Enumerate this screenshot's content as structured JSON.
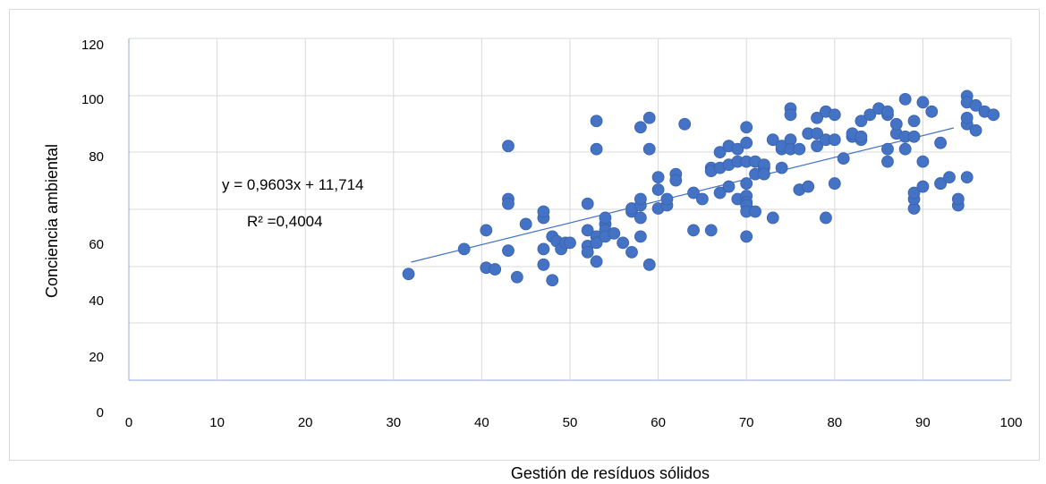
{
  "chart_data": {
    "type": "scatter",
    "xlabel": "Gestión de resíduos sólidos",
    "ylabel": "Conciencia ambiental",
    "xlim": [
      0,
      100
    ],
    "ylim": [
      0,
      120
    ],
    "x_ticks": [
      "0",
      "10",
      "20",
      "30",
      "40",
      "50",
      "60",
      "70",
      "80",
      "90",
      "100"
    ],
    "y_ticks": [
      "0",
      "20",
      "40",
      "60",
      "80",
      "100",
      "120"
    ],
    "grid": true,
    "point_color": "#4472c4",
    "trendline_color": "#4472c4",
    "equation": "y = 0,9603x + 11,714",
    "r_squared": "R² =0,4004",
    "trendline": {
      "slope": 0.9603,
      "intercept": 11.714,
      "x_start": 32,
      "x_end": 93.5
    },
    "points": [
      [
        31.7,
        48
      ],
      [
        38,
        56
      ],
      [
        40.5,
        62
      ],
      [
        40.5,
        50
      ],
      [
        41.5,
        49.5
      ],
      [
        43,
        89
      ],
      [
        43,
        72
      ],
      [
        43,
        55.5
      ],
      [
        43,
        70.5
      ],
      [
        44,
        47
      ],
      [
        45,
        64
      ],
      [
        47,
        51
      ],
      [
        47,
        56
      ],
      [
        47,
        66
      ],
      [
        47,
        68
      ],
      [
        48,
        46
      ],
      [
        48,
        60
      ],
      [
        48.5,
        58.5
      ],
      [
        49,
        56
      ],
      [
        49.5,
        58
      ],
      [
        50,
        58
      ],
      [
        52,
        70.5
      ],
      [
        52,
        62
      ],
      [
        52,
        57
      ],
      [
        52,
        55
      ],
      [
        53,
        97
      ],
      [
        53,
        88
      ],
      [
        53,
        60
      ],
      [
        53,
        58
      ],
      [
        53,
        52
      ],
      [
        54,
        64
      ],
      [
        54,
        66
      ],
      [
        54,
        62
      ],
      [
        54,
        60
      ],
      [
        55,
        61
      ],
      [
        56,
        58
      ],
      [
        57,
        68
      ],
      [
        57,
        69
      ],
      [
        57,
        55
      ],
      [
        58,
        70
      ],
      [
        58,
        72
      ],
      [
        58,
        66
      ],
      [
        58,
        60
      ],
      [
        58,
        95
      ],
      [
        59,
        98
      ],
      [
        59,
        88
      ],
      [
        59,
        51
      ],
      [
        60,
        75
      ],
      [
        60,
        79
      ],
      [
        60,
        69
      ],
      [
        61,
        70
      ],
      [
        61,
        72
      ],
      [
        62,
        80
      ],
      [
        62,
        78
      ],
      [
        63,
        96
      ],
      [
        64,
        74
      ],
      [
        64,
        62
      ],
      [
        65,
        72
      ],
      [
        66,
        82
      ],
      [
        66,
        81
      ],
      [
        66,
        62
      ],
      [
        67,
        87
      ],
      [
        67,
        82
      ],
      [
        67,
        74
      ],
      [
        68,
        89
      ],
      [
        68,
        83
      ],
      [
        68,
        76
      ],
      [
        69,
        88
      ],
      [
        69,
        84
      ],
      [
        69,
        72
      ],
      [
        70,
        77
      ],
      [
        70,
        73
      ],
      [
        70,
        71
      ],
      [
        70,
        70
      ],
      [
        70,
        68
      ],
      [
        70,
        60
      ],
      [
        70,
        90
      ],
      [
        70,
        95
      ],
      [
        70,
        84
      ],
      [
        71,
        84
      ],
      [
        71,
        80
      ],
      [
        71,
        68
      ],
      [
        72,
        82
      ],
      [
        72,
        83
      ],
      [
        72,
        80
      ],
      [
        73,
        91
      ],
      [
        73,
        66
      ],
      [
        74,
        88
      ],
      [
        74,
        89
      ],
      [
        74,
        82
      ],
      [
        75,
        91
      ],
      [
        75,
        88
      ],
      [
        75,
        101
      ],
      [
        75,
        99
      ],
      [
        76,
        88
      ],
      [
        76,
        75
      ],
      [
        77,
        93
      ],
      [
        77,
        76
      ],
      [
        78,
        89
      ],
      [
        78,
        98
      ],
      [
        78,
        93
      ],
      [
        79,
        100
      ],
      [
        79,
        91
      ],
      [
        79,
        66
      ],
      [
        80,
        99
      ],
      [
        80,
        91
      ],
      [
        80,
        77
      ],
      [
        81,
        85
      ],
      [
        82,
        92
      ],
      [
        82,
        93
      ],
      [
        83,
        91
      ],
      [
        83,
        92
      ],
      [
        83,
        97
      ],
      [
        84,
        99
      ],
      [
        85,
        101
      ],
      [
        86,
        99
      ],
      [
        86,
        100
      ],
      [
        86,
        84
      ],
      [
        86,
        88
      ],
      [
        87,
        93
      ],
      [
        87,
        96
      ],
      [
        88,
        92
      ],
      [
        88,
        104
      ],
      [
        88,
        88
      ],
      [
        89,
        97
      ],
      [
        89,
        69
      ],
      [
        89,
        72
      ],
      [
        89,
        74
      ],
      [
        89,
        92
      ],
      [
        90,
        103
      ],
      [
        90,
        84
      ],
      [
        90,
        76
      ],
      [
        91,
        100
      ],
      [
        92,
        77
      ],
      [
        92,
        77
      ],
      [
        92,
        90
      ],
      [
        93,
        79
      ],
      [
        94,
        70
      ],
      [
        94,
        72
      ],
      [
        95,
        79
      ],
      [
        95,
        105
      ],
      [
        95,
        103
      ],
      [
        95,
        96
      ],
      [
        95,
        98
      ],
      [
        96,
        102
      ],
      [
        96,
        94
      ],
      [
        97,
        100
      ],
      [
        98,
        99
      ]
    ]
  }
}
